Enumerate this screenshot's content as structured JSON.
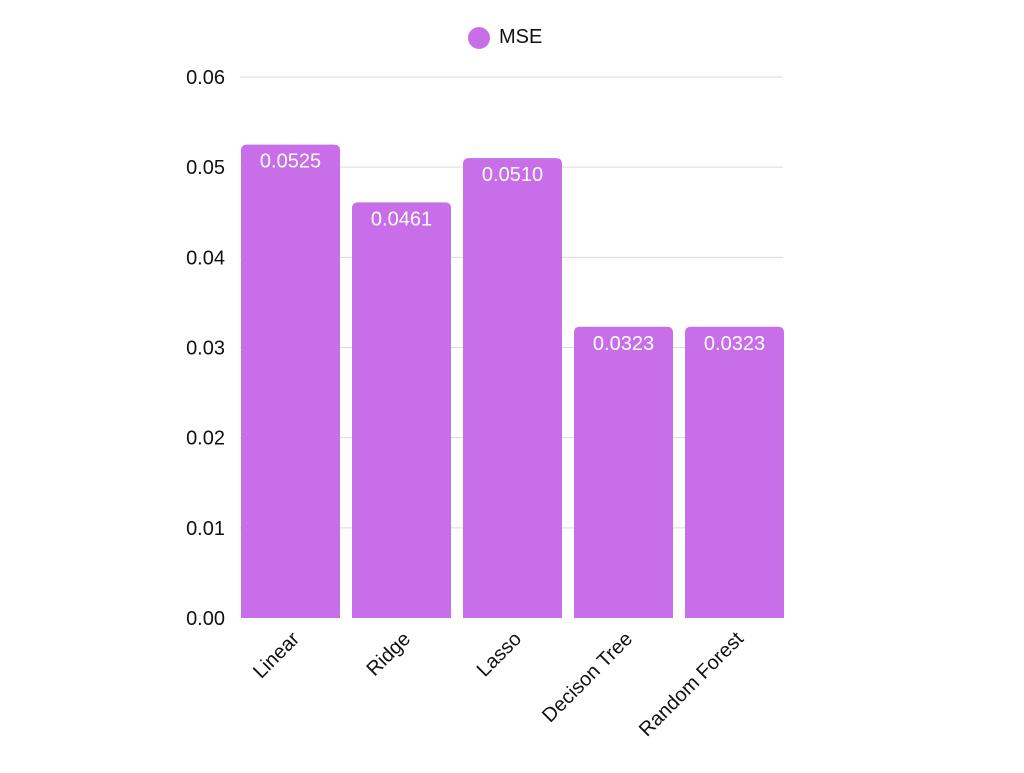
{
  "chart_data": {
    "type": "bar",
    "categories": [
      "Linear",
      "Ridge",
      "Lasso",
      "Decison Tree",
      "Random Forest"
    ],
    "series": [
      {
        "name": "MSE",
        "values": [
          0.0525,
          0.0461,
          0.051,
          0.0323,
          0.0323
        ]
      }
    ],
    "data_labels": [
      "0.0525",
      "0.0461",
      "0.0510",
      "0.0323",
      "0.0323"
    ],
    "y_ticks": [
      "0.00",
      "0.01",
      "0.02",
      "0.03",
      "0.04",
      "0.05",
      "0.06"
    ],
    "ylim": [
      0,
      0.06
    ],
    "legend": {
      "label": "MSE",
      "position": "top-center"
    },
    "grid": true,
    "colors": {
      "bar": "#c86ee8",
      "grid": "#d9d9d9",
      "data_label": "#ffffff",
      "text": "#111111"
    }
  }
}
